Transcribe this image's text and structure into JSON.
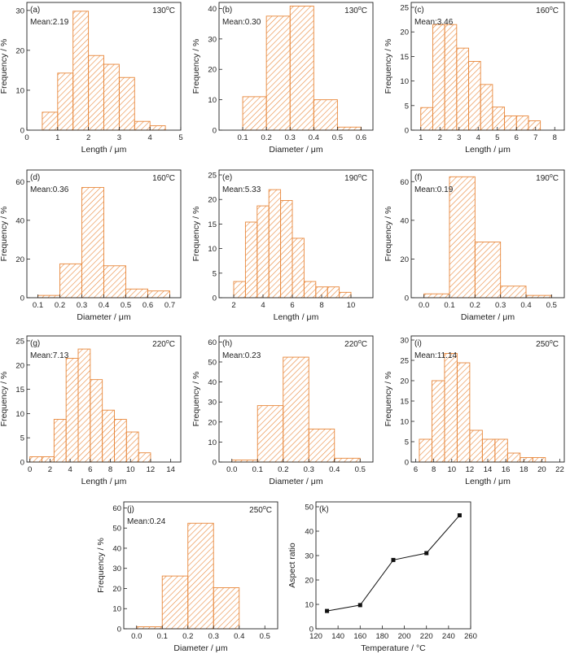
{
  "figure": {
    "hatch_color": "#e8873a",
    "axis_color": "#222222",
    "marker_color": "#111111"
  },
  "chart_data": [
    {
      "panel": "(a)",
      "type": "bar",
      "temperature": "130",
      "mean": "Mean:2.19",
      "xlabel": "Length / μm",
      "ylabel": "Frequency / %",
      "xlim": [
        0,
        5
      ],
      "ylim": [
        0,
        32
      ],
      "xticks": [
        "0",
        "1",
        "2",
        "3",
        "4",
        "5"
      ],
      "yticks": [
        "0",
        "10",
        "20",
        "30"
      ],
      "bin_width": 0.5,
      "bins": [
        [
          0.5,
          4.5
        ],
        [
          1.0,
          14.3
        ],
        [
          1.5,
          29.8
        ],
        [
          2.0,
          18.7
        ],
        [
          2.5,
          16.5
        ],
        [
          3.0,
          13.2
        ],
        [
          3.5,
          2.2
        ],
        [
          4.0,
          1.1
        ]
      ]
    },
    {
      "panel": "(b)",
      "type": "bar",
      "temperature": "130",
      "mean": "Mean:0.30",
      "xlabel": "Diameter / μm",
      "ylabel": "Frequency / %",
      "xlim": [
        0,
        0.65
      ],
      "ylim": [
        0,
        42
      ],
      "xticks": [
        "0.1",
        "0.2",
        "0.3",
        "0.4",
        "0.5",
        "0.6"
      ],
      "yticks": [
        "0",
        "10",
        "20",
        "30",
        "40"
      ],
      "bin_width": 0.1,
      "bins": [
        [
          0.1,
          11.0
        ],
        [
          0.2,
          37.5
        ],
        [
          0.3,
          40.8
        ],
        [
          0.4,
          10.0
        ],
        [
          0.5,
          1.0
        ]
      ]
    },
    {
      "panel": "(c)",
      "type": "bar",
      "temperature": "160",
      "mean": "Mean:3.46",
      "xlabel": "Length / μm",
      "ylabel": "Frequency / %",
      "xlim": [
        0.5,
        8.5
      ],
      "ylim": [
        0,
        26
      ],
      "xticks": [
        "1",
        "2",
        "3",
        "4",
        "5",
        "6",
        "7",
        "8"
      ],
      "yticks": [
        "0",
        "5",
        "10",
        "15",
        "20",
        "25"
      ],
      "bin_width": 0.625,
      "bins": [
        [
          1.0,
          4.6
        ],
        [
          1.625,
          21.5
        ],
        [
          2.25,
          21.5
        ],
        [
          2.875,
          16.7
        ],
        [
          3.5,
          14.0
        ],
        [
          4.125,
          9.3
        ],
        [
          4.75,
          4.7
        ],
        [
          5.375,
          2.9
        ],
        [
          6.0,
          2.9
        ],
        [
          6.625,
          1.9
        ]
      ]
    },
    {
      "panel": "(d)",
      "type": "bar",
      "temperature": "160",
      "mean": "Mean:0.36",
      "xlabel": "Diameter / μm",
      "ylabel": "Frequency / %",
      "xlim": [
        0.05,
        0.75
      ],
      "ylim": [
        0,
        66
      ],
      "xticks": [
        "0.1",
        "0.2",
        "0.3",
        "0.4",
        "0.5",
        "0.6",
        "0.7"
      ],
      "yticks": [
        "0",
        "20",
        "40",
        "60"
      ],
      "bin_width": 0.1,
      "bins": [
        [
          0.1,
          1.2
        ],
        [
          0.2,
          17.5
        ],
        [
          0.3,
          57.0
        ],
        [
          0.4,
          16.5
        ],
        [
          0.5,
          4.5
        ],
        [
          0.6,
          3.5
        ]
      ]
    },
    {
      "panel": "(e)",
      "type": "bar",
      "temperature": "190",
      "mean": "Mean:5.33",
      "xlabel": "Length / μm",
      "ylabel": "Frequency / %",
      "xlim": [
        1,
        11.5
      ],
      "ylim": [
        0,
        26
      ],
      "xticks": [
        "2",
        "4",
        "6",
        "8",
        "10"
      ],
      "yticks": [
        "0",
        "5",
        "10",
        "15",
        "20",
        "25"
      ],
      "bin_width": 0.8,
      "bins": [
        [
          2.0,
          3.3
        ],
        [
          2.8,
          15.4
        ],
        [
          3.6,
          18.7
        ],
        [
          4.4,
          22.0
        ],
        [
          5.2,
          19.8
        ],
        [
          6.0,
          12.1
        ],
        [
          6.8,
          3.3
        ],
        [
          7.6,
          2.2
        ],
        [
          8.4,
          2.2
        ],
        [
          9.2,
          1.1
        ]
      ]
    },
    {
      "panel": "(f)",
      "type": "bar",
      "temperature": "190",
      "mean": "Mean:0.19",
      "xlabel": "Diameter / μm",
      "ylabel": "Frequency / %",
      "xlim": [
        -0.05,
        0.55
      ],
      "ylim": [
        0,
        66
      ],
      "xticks": [
        "0.0",
        "0.1",
        "0.2",
        "0.3",
        "0.4",
        "0.5"
      ],
      "yticks": [
        "0",
        "20",
        "40",
        "60"
      ],
      "bin_width": 0.1,
      "bins": [
        [
          0.0,
          2.0
        ],
        [
          0.1,
          62.5
        ],
        [
          0.2,
          28.8
        ],
        [
          0.3,
          6.0
        ],
        [
          0.4,
          1.2
        ]
      ]
    },
    {
      "panel": "(g)",
      "type": "bar",
      "temperature": "220",
      "mean": "Mean:7.13",
      "xlabel": "Length / μm",
      "ylabel": "Frequency / %",
      "xlim": [
        -0.3,
        15
      ],
      "ylim": [
        0,
        26
      ],
      "xticks": [
        "0",
        "2",
        "4",
        "6",
        "8",
        "10",
        "12",
        "14"
      ],
      "yticks": [
        "0",
        "5",
        "10",
        "15",
        "20",
        "25"
      ],
      "bin_width": 1.2,
      "bins": [
        [
          0.0,
          1.1
        ],
        [
          1.2,
          1.1
        ],
        [
          2.4,
          8.8
        ],
        [
          3.6,
          21.4
        ],
        [
          4.8,
          23.3
        ],
        [
          6.0,
          17.0
        ],
        [
          7.2,
          10.7
        ],
        [
          8.4,
          8.8
        ],
        [
          9.6,
          6.2
        ],
        [
          10.8,
          1.9
        ]
      ]
    },
    {
      "panel": "(h)",
      "type": "bar",
      "temperature": "220",
      "mean": "Mean:0.23",
      "xlabel": "Diameter / μm",
      "ylabel": "Frequency / %",
      "xlim": [
        -0.05,
        0.55
      ],
      "ylim": [
        0,
        63
      ],
      "xticks": [
        "0.0",
        "0.1",
        "0.2",
        "0.3",
        "0.4",
        "0.5"
      ],
      "yticks": [
        "0",
        "10",
        "20",
        "30",
        "40",
        "50",
        "60"
      ],
      "bin_width": 0.1,
      "bins": [
        [
          0.0,
          1.0
        ],
        [
          0.1,
          28.2
        ],
        [
          0.2,
          52.4
        ],
        [
          0.3,
          16.5
        ],
        [
          0.4,
          1.9
        ]
      ]
    },
    {
      "panel": "(i)",
      "type": "bar",
      "temperature": "250",
      "mean": "Mean:11.14",
      "xlabel": "Length / μm",
      "ylabel": "Frequency / %",
      "xlim": [
        5.5,
        22.5
      ],
      "ylim": [
        0,
        31
      ],
      "xticks": [
        "6",
        "8",
        "10",
        "12",
        "14",
        "16",
        "18",
        "20",
        "22"
      ],
      "yticks": [
        "0",
        "5",
        "10",
        "15",
        "20",
        "25",
        "30"
      ],
      "bin_width": 1.4,
      "bins": [
        [
          6.4,
          5.6
        ],
        [
          7.8,
          20.0
        ],
        [
          9.2,
          26.7
        ],
        [
          10.6,
          24.4
        ],
        [
          12.0,
          7.8
        ],
        [
          13.4,
          5.6
        ],
        [
          14.8,
          5.6
        ],
        [
          16.2,
          2.2
        ],
        [
          17.6,
          1.1
        ],
        [
          19.0,
          1.1
        ]
      ]
    },
    {
      "panel": "(j)",
      "type": "bar",
      "temperature": "250",
      "mean": "Mean:0.24",
      "xlabel": "Diameter / μm",
      "ylabel": "Frequency / %",
      "xlim": [
        -0.05,
        0.55
      ],
      "ylim": [
        0,
        63
      ],
      "xticks": [
        "0.0",
        "0.1",
        "0.2",
        "0.3",
        "0.4",
        "0.5"
      ],
      "yticks": [
        "0",
        "10",
        "20",
        "30",
        "40",
        "50",
        "60"
      ],
      "bin_width": 0.1,
      "bins": [
        [
          0.0,
          1.0
        ],
        [
          0.1,
          26.2
        ],
        [
          0.2,
          52.4
        ],
        [
          0.3,
          20.4
        ]
      ]
    },
    {
      "panel": "(k)",
      "type": "line",
      "xlabel": "Temperature / °C",
      "ylabel": "Aspect ratio",
      "xlim": [
        120,
        260
      ],
      "ylim": [
        0,
        52
      ],
      "xticks": [
        "120",
        "140",
        "160",
        "180",
        "200",
        "220",
        "240",
        "260"
      ],
      "yticks": [
        "0",
        "10",
        "20",
        "30",
        "40",
        "50"
      ],
      "x": [
        130,
        160,
        190,
        220,
        250
      ],
      "y": [
        7.3,
        9.7,
        28.2,
        31.0,
        46.5
      ]
    }
  ]
}
